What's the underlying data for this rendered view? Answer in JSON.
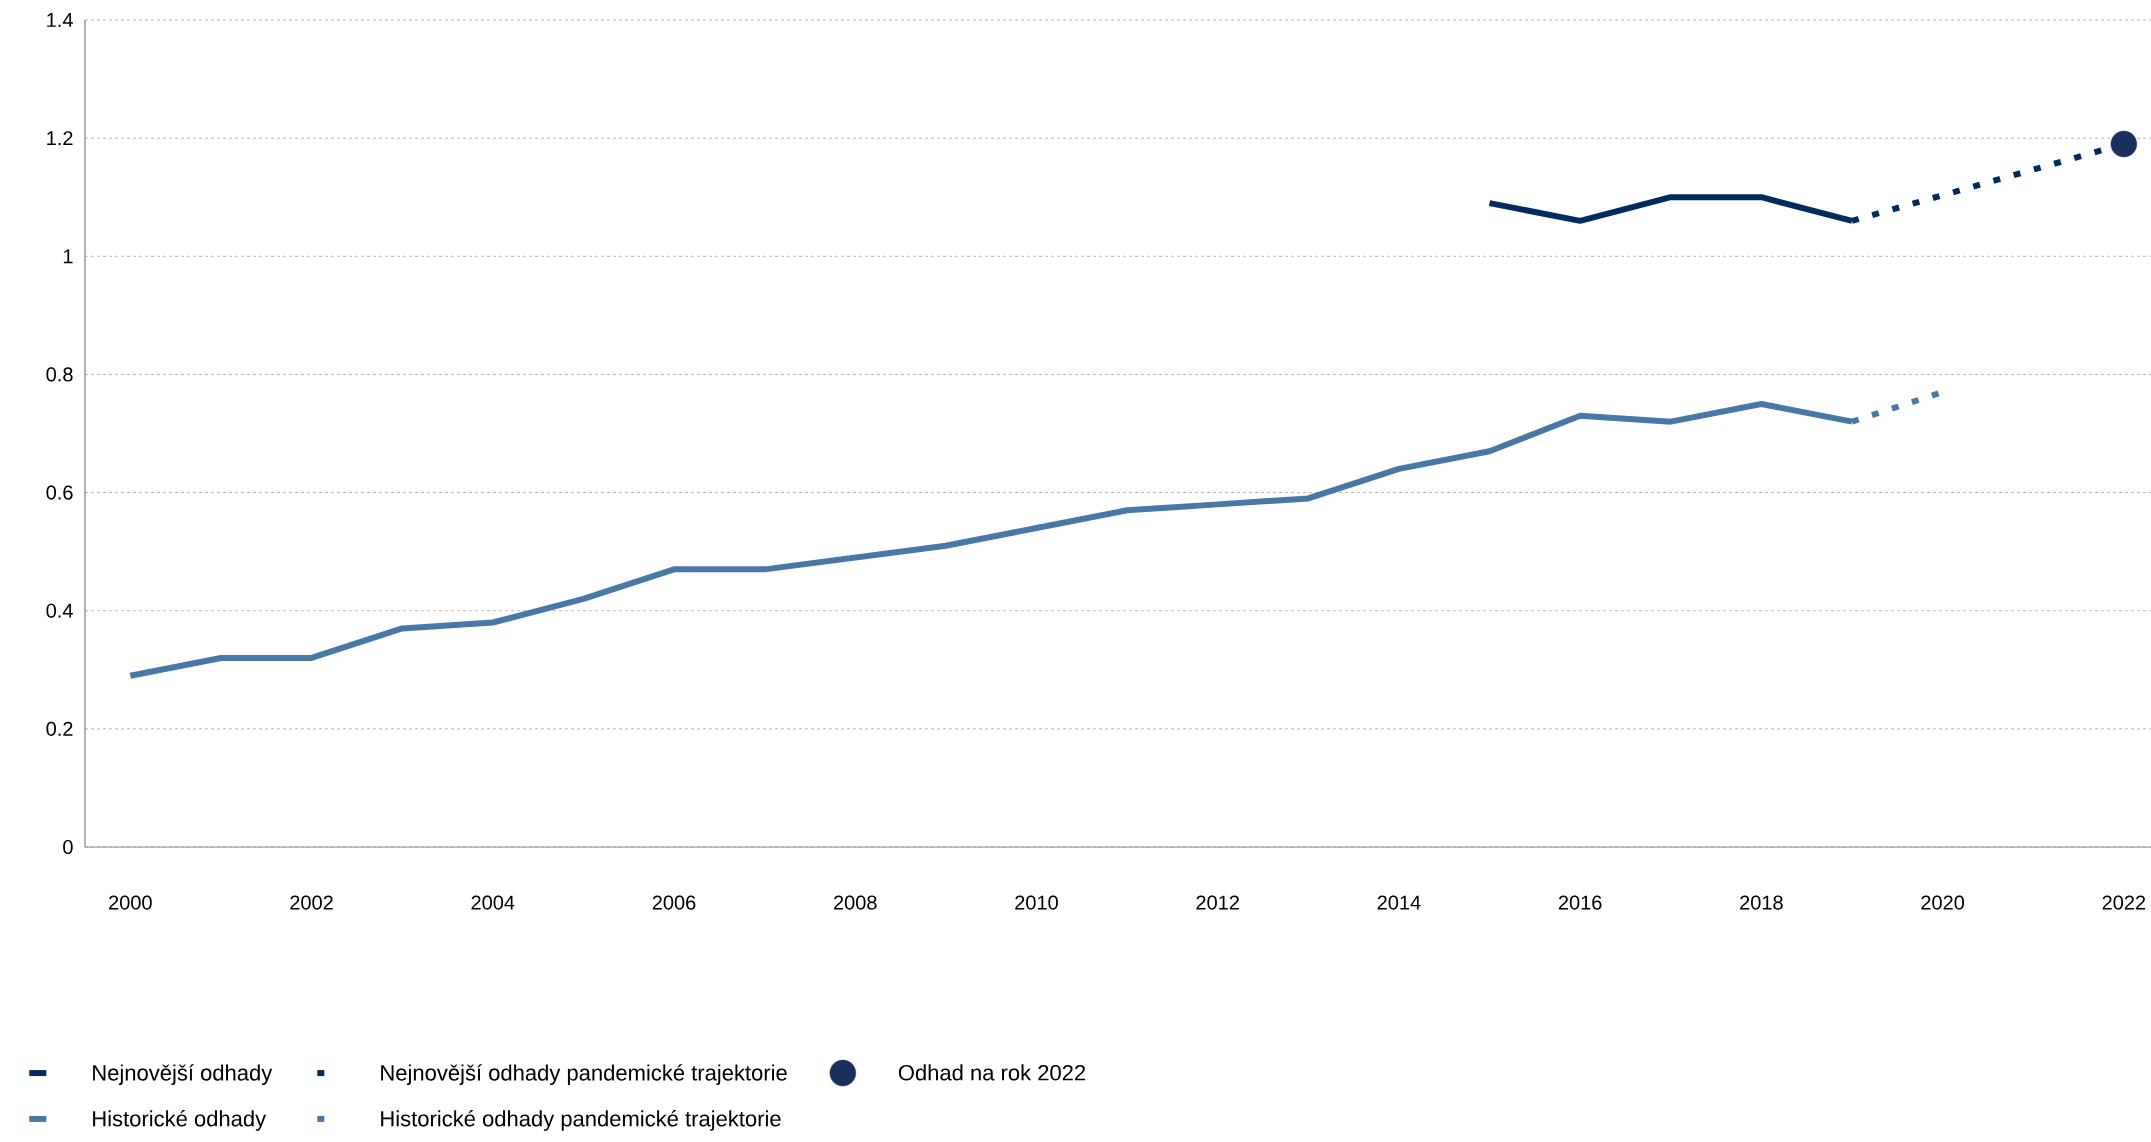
{
  "chart_data": {
    "type": "line",
    "x": [
      2000,
      2001,
      2002,
      2003,
      2004,
      2005,
      2006,
      2007,
      2008,
      2009,
      2010,
      2011,
      2012,
      2013,
      2014,
      2015,
      2016,
      2017,
      2018,
      2019
    ],
    "series": [
      {
        "name": "Nejnovější odhady",
        "color": "#002b5c",
        "line_style": "solid",
        "x": [
          2015,
          2016,
          2017,
          2018,
          2019
        ],
        "values": [
          1.09,
          1.06,
          1.1,
          1.1,
          1.06
        ]
      },
      {
        "name": "Nejnovější odhady pandemické trajektorie",
        "color": "#002b5c",
        "line_style": "dotted",
        "x": [
          2019,
          2022
        ],
        "values": [
          1.06,
          1.19
        ]
      },
      {
        "name": "Odhad na rok 2022",
        "type": "scatter",
        "color": "#1a2f5e",
        "x": [
          2022
        ],
        "values": [
          1.19
        ]
      },
      {
        "name": "Historické odhady",
        "color": "#4a78a6",
        "line_style": "solid",
        "values": [
          0.29,
          0.32,
          0.32,
          0.37,
          0.38,
          0.42,
          0.47,
          0.47,
          0.49,
          0.51,
          0.54,
          0.57,
          0.58,
          0.59,
          0.64,
          0.67,
          0.73,
          0.72,
          0.75,
          0.72
        ]
      },
      {
        "name": "Historické odhady pandemické trajektorie",
        "color": "#4a78a6",
        "line_style": "dotted",
        "x": [
          2019,
          2020
        ],
        "values": [
          0.72,
          0.77
        ]
      }
    ],
    "xlim": [
      1999.5,
      2022.3
    ],
    "ylim": [
      0,
      1.4
    ],
    "xticks": [
      2000,
      2002,
      2004,
      2006,
      2008,
      2010,
      2012,
      2014,
      2016,
      2018,
      2020,
      2022
    ],
    "yticks": [
      0,
      0.2,
      0.4,
      0.6,
      0.8,
      1,
      1.2,
      1.4
    ],
    "grid": "y",
    "legend": "bottom"
  }
}
